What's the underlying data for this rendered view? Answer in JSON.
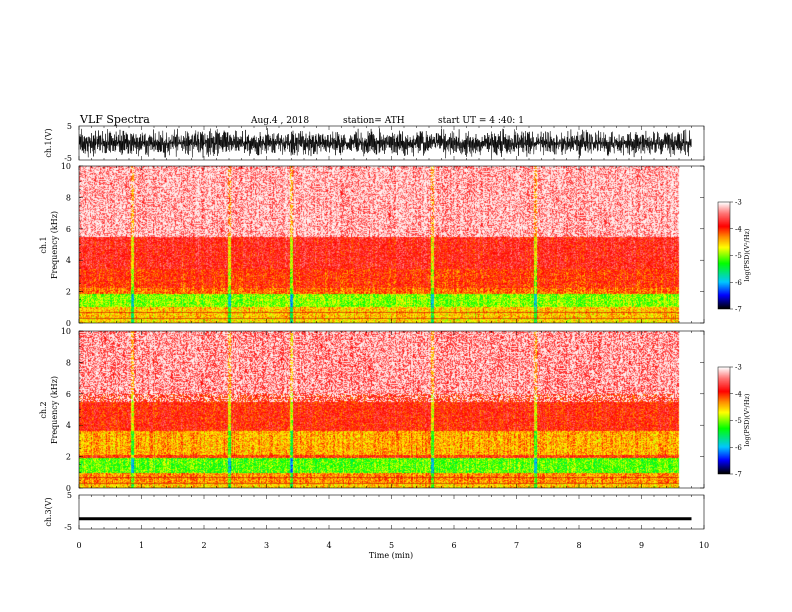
{
  "header": {
    "title": "VLF Spectra",
    "date": "Aug.4  , 2018",
    "station": "station= ATH",
    "start": "start  UT  =   4  :40: 1"
  },
  "colors": {
    "ch1_waveform": "#000000",
    "ch3_waveform": "#000000",
    "colormap": [
      "#000000",
      "#0000ff",
      "#00e0ff",
      "#00ff00",
      "#ffff00",
      "#ff8000",
      "#ff0000",
      "#ffffff"
    ]
  },
  "chart_data": [
    {
      "type": "line",
      "panel": "ch1-waveform",
      "ylabel": "ch.1(V)",
      "ylim": [
        -5,
        5
      ],
      "yticks": [
        "5",
        "-5"
      ],
      "xlim": [
        0,
        10
      ],
      "data_end_min": 9.8,
      "description_values": {
        "amplitude_range_V": [
          -4.5,
          4.5
        ],
        "mean_V": 0
      }
    },
    {
      "type": "heatmap",
      "panel": "ch1-spectrogram",
      "ylabel_line1": "ch.1",
      "ylabel_line2": "Frequency  (kHz)",
      "ylim": [
        0,
        10
      ],
      "yticks": [
        "0",
        "2",
        "4",
        "6",
        "8",
        "10"
      ],
      "xlim": [
        0,
        10
      ],
      "data_end_min": 9.8,
      "colorbar": {
        "label": "log(PSD)(V²/Hz)",
        "range": [
          -7,
          -3
        ],
        "ticks": [
          "-3",
          "-4",
          "-5",
          "-6",
          "-7"
        ]
      },
      "bands": [
        {
          "f": [
            0,
            0.3
          ],
          "level": -4.6
        },
        {
          "f": [
            0.3,
            1.0
          ],
          "level": -4.5
        },
        {
          "f": [
            1.0,
            1.8
          ],
          "level": -5.0
        },
        {
          "f": [
            1.8,
            2.2
          ],
          "level": -4.2
        },
        {
          "f": [
            2.2,
            3.4
          ],
          "level": -4.0
        },
        {
          "f": [
            3.4,
            5.5
          ],
          "level": -3.8
        },
        {
          "f": [
            5.5,
            10.0
          ],
          "level": -3.4
        }
      ],
      "bright_vertical_lines_min": [
        0.85,
        2.4,
        3.4,
        5.65,
        7.3
      ]
    },
    {
      "type": "heatmap",
      "panel": "ch2-spectrogram",
      "ylabel_line1": "ch.2",
      "ylabel_line2": "Frequency  (kHz)",
      "ylim": [
        0,
        10
      ],
      "yticks": [
        "0",
        "2",
        "4",
        "6",
        "8",
        "10"
      ],
      "xlim": [
        0,
        10
      ],
      "data_end_min": 9.8,
      "colorbar": {
        "label": "log(PSD)(V²/Hz)",
        "range": [
          -7,
          -3
        ],
        "ticks": [
          "-3",
          "-4",
          "-5",
          "-6",
          "-7"
        ]
      },
      "bands": [
        {
          "f": [
            0,
            0.3
          ],
          "level": -4.5
        },
        {
          "f": [
            0.3,
            0.9
          ],
          "level": -4.3
        },
        {
          "f": [
            0.9,
            1.9
          ],
          "level": -5.1
        },
        {
          "f": [
            1.9,
            2.1
          ],
          "level": -4.0
        },
        {
          "f": [
            2.1,
            3.6
          ],
          "level": -4.4
        },
        {
          "f": [
            3.6,
            6.0
          ],
          "level": -3.9
        },
        {
          "f": [
            6.0,
            10.0
          ],
          "level": -3.5
        }
      ],
      "bright_vertical_lines_min": [
        0.85,
        2.4,
        3.4,
        5.65,
        7.3
      ]
    },
    {
      "type": "line",
      "panel": "ch3-waveform",
      "ylabel": "ch.3(V)",
      "ylim": [
        -5,
        5
      ],
      "yticks": [
        "5",
        "-5"
      ],
      "xlim": [
        0,
        10
      ],
      "xticks": [
        "0",
        "1",
        "2",
        "3",
        "4",
        "5",
        "6",
        "7",
        "8",
        "9",
        "10"
      ],
      "xlabel": "Time  (min)",
      "data_end_min": 9.8,
      "description_values": {
        "level_V": -2.0
      }
    }
  ]
}
